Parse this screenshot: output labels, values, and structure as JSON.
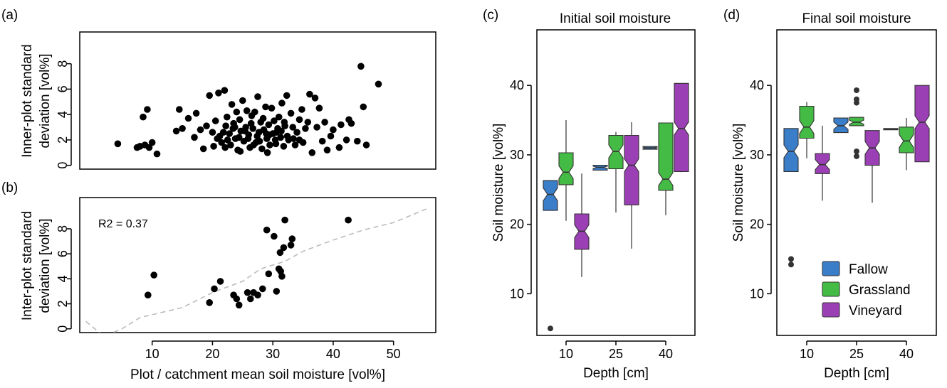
{
  "colors": {
    "Fallow": "#3a7dc9",
    "Grassland": "#44bb44",
    "Vineyard": "#9b3fb5",
    "point": "#000000",
    "fit_line": "#bbbbbb"
  },
  "panels": {
    "a": {
      "label": "(a)",
      "ylabel_line1": "Inner-plot standard",
      "ylabel_line2": "deviation [vol%]"
    },
    "b": {
      "label": "(b)",
      "ylabel_line1": "Inter-plot standard",
      "ylabel_line2": "deviation [vol%]",
      "annotation": "R2 = 0.37",
      "xlabel": "Plot / catchment mean soil moisture [vol%]"
    },
    "c": {
      "label": "(c)",
      "title": "Initial soil moisture",
      "ylabel": "Soil moisture [vol%]",
      "xlabel": "Depth [cm]"
    },
    "d": {
      "label": "(d)",
      "title": "Final soil moisture",
      "ylabel": "Soil moisture [vol%]",
      "xlabel": "Depth [cm]"
    }
  },
  "legend": {
    "items": [
      "Fallow",
      "Grassland",
      "Vineyard"
    ]
  },
  "chart_data": [
    {
      "id": "a",
      "type": "scatter",
      "xlim": [
        -2,
        57
      ],
      "ylim": [
        -0.3,
        10.5
      ],
      "xticks": [],
      "yticks": [
        0,
        2,
        4,
        6,
        8
      ],
      "points": [
        [
          4.3,
          1.7
        ],
        [
          7.5,
          1.4
        ],
        [
          8,
          1.5
        ],
        [
          8.5,
          3.8
        ],
        [
          8.8,
          1.6
        ],
        [
          9.2,
          4.4
        ],
        [
          9.5,
          1.4
        ],
        [
          10,
          1.8
        ],
        [
          10.8,
          0.9
        ],
        [
          14,
          2.7
        ],
        [
          14.5,
          4.4
        ],
        [
          15,
          2.9
        ],
        [
          16,
          3.7
        ],
        [
          17,
          2.2
        ],
        [
          17.3,
          4.1
        ],
        [
          18,
          2.8
        ],
        [
          18.5,
          1.3
        ],
        [
          19,
          3.1
        ],
        [
          19.5,
          5.5
        ],
        [
          20,
          2.6
        ],
        [
          20.2,
          1.5
        ],
        [
          20.5,
          3.5
        ],
        [
          21,
          5.7
        ],
        [
          21.2,
          2.3
        ],
        [
          21.5,
          1.8
        ],
        [
          22,
          5.9
        ],
        [
          22.2,
          3.1
        ],
        [
          22.5,
          2.0
        ],
        [
          22.8,
          2.5
        ],
        [
          23,
          1.6
        ],
        [
          23.2,
          4.8
        ],
        [
          23.5,
          3.3
        ],
        [
          23.8,
          2.1
        ],
        [
          24,
          4.2
        ],
        [
          24.2,
          1.2
        ],
        [
          24.5,
          3.6
        ],
        [
          24.7,
          2.7
        ],
        [
          25,
          5.1
        ],
        [
          25.2,
          1.9
        ],
        [
          25.5,
          3.0
        ],
        [
          25.7,
          4.3
        ],
        [
          26,
          2.4
        ],
        [
          26.2,
          1.4
        ],
        [
          26.5,
          3.9
        ],
        [
          26.7,
          2.9
        ],
        [
          27,
          4.2
        ],
        [
          27.2,
          1.8
        ],
        [
          27.5,
          5.4
        ],
        [
          27.7,
          2.6
        ],
        [
          28,
          3.4
        ],
        [
          28.2,
          1.3
        ],
        [
          28.5,
          2.8
        ],
        [
          28.8,
          4.6
        ],
        [
          29,
          2.1
        ],
        [
          29.3,
          3.2
        ],
        [
          29.5,
          1.6
        ],
        [
          29.8,
          4.5
        ],
        [
          30,
          2.5
        ],
        [
          30.2,
          3.5
        ],
        [
          30.5,
          1.7
        ],
        [
          30.8,
          2.9
        ],
        [
          31,
          3.8
        ],
        [
          31.3,
          2.2
        ],
        [
          31.5,
          4.9
        ],
        [
          31.8,
          1.5
        ],
        [
          32,
          3.1
        ],
        [
          32.3,
          5.5
        ],
        [
          32.6,
          2.0
        ],
        [
          33,
          4.1
        ],
        [
          33.3,
          3.0
        ],
        [
          33.7,
          1.6
        ],
        [
          34,
          2.6
        ],
        [
          34.4,
          3.6
        ],
        [
          34.8,
          4.4
        ],
        [
          35,
          1.8
        ],
        [
          35.4,
          2.9
        ],
        [
          35.8,
          3.4
        ],
        [
          36.1,
          5.6
        ],
        [
          36.5,
          1.0
        ],
        [
          37,
          5.3
        ],
        [
          37.3,
          3.0
        ],
        [
          37.7,
          4.5
        ],
        [
          38.2,
          1.9
        ],
        [
          38.6,
          3.4
        ],
        [
          39,
          1.2
        ],
        [
          39.6,
          2.3
        ],
        [
          40,
          2.8
        ],
        [
          41,
          1.4
        ],
        [
          41.3,
          3.2
        ],
        [
          42.2,
          2.0
        ],
        [
          42.6,
          3.6
        ],
        [
          43,
          3.3
        ],
        [
          44,
          1.9
        ],
        [
          44.6,
          7.8
        ],
        [
          45,
          4.6
        ],
        [
          45.5,
          1.6
        ],
        [
          47.5,
          6.4
        ],
        [
          20.8,
          2.1
        ],
        [
          21.8,
          2.6
        ],
        [
          22.4,
          3.8
        ],
        [
          23.4,
          2.9
        ],
        [
          24.4,
          2.2
        ],
        [
          25.4,
          2.7
        ],
        [
          26.4,
          3.3
        ],
        [
          27.4,
          2.3
        ],
        [
          28.4,
          3.7
        ],
        [
          29.4,
          2.4
        ],
        [
          30.4,
          2.0
        ],
        [
          31.4,
          2.7
        ],
        [
          32.4,
          2.3
        ],
        [
          33.4,
          2.1
        ],
        [
          34.4,
          2.0
        ],
        [
          24.6,
          1.1
        ],
        [
          27.8,
          1.9
        ],
        [
          29.1,
          1.0
        ],
        [
          30.6,
          2.6
        ],
        [
          26.8,
          1.6
        ],
        [
          23.7,
          3.0
        ],
        [
          22.1,
          1.4
        ],
        [
          31.9,
          3.4
        ],
        [
          28.9,
          2.5
        ],
        [
          25.9,
          2.1
        ]
      ]
    },
    {
      "id": "b",
      "type": "scatter",
      "xlim": [
        -2,
        57
      ],
      "ylim": [
        -0.3,
        10.5
      ],
      "xticks": [
        10,
        20,
        30,
        40,
        50
      ],
      "yticks": [
        0,
        2,
        4,
        6,
        8
      ],
      "points": [
        [
          9.3,
          2.7
        ],
        [
          10.3,
          4.3
        ],
        [
          19.5,
          2.1
        ],
        [
          20.3,
          3.2
        ],
        [
          21.3,
          3.8
        ],
        [
          23.5,
          2.7
        ],
        [
          24,
          2.4
        ],
        [
          24.4,
          1.9
        ],
        [
          25.8,
          2.9
        ],
        [
          26.3,
          2.4
        ],
        [
          26.8,
          2.9
        ],
        [
          27.5,
          2.7
        ],
        [
          28.3,
          3.2
        ],
        [
          29,
          7.9
        ],
        [
          29.3,
          4.4
        ],
        [
          30.2,
          7.4
        ],
        [
          30.6,
          3.0
        ],
        [
          31,
          4.8
        ],
        [
          31.2,
          6.1
        ],
        [
          31.3,
          4.6
        ],
        [
          31.5,
          4.2
        ],
        [
          31.8,
          6.5
        ],
        [
          32,
          8.7
        ],
        [
          33,
          6.7
        ],
        [
          33.2,
          7.2
        ],
        [
          42.5,
          8.7
        ]
      ],
      "fit_line": [
        [
          -1,
          0.6
        ],
        [
          2,
          -0.6
        ],
        [
          5,
          0
        ],
        [
          8,
          0.9
        ],
        [
          15,
          1.7
        ],
        [
          20,
          2.9
        ],
        [
          25,
          3.8
        ],
        [
          28,
          4.8
        ],
        [
          32,
          5.4
        ],
        [
          35,
          6.2
        ],
        [
          40,
          7.1
        ],
        [
          45,
          7.9
        ],
        [
          50,
          8.5
        ],
        [
          56,
          9.7
        ]
      ]
    },
    {
      "id": "c",
      "type": "boxplot",
      "ylim": [
        4,
        48
      ],
      "yticks": [
        10,
        20,
        30,
        40
      ],
      "categories": [
        "10",
        "25",
        "40"
      ],
      "series": [
        {
          "name": "Fallow",
          "boxes": [
            {
              "min": 22,
              "q1": 22,
              "med": 24.3,
              "q3": 26.3,
              "max": 26.3,
              "outliers": [
                5
              ]
            },
            {
              "min": 27.8,
              "q1": 27.8,
              "med": 28.2,
              "q3": 28.5,
              "max": 28.5,
              "outliers": []
            },
            {
              "min": 30.8,
              "q1": 30.8,
              "med": 31,
              "q3": 31.2,
              "max": 31.2,
              "outliers": []
            }
          ]
        },
        {
          "name": "Grassland",
          "boxes": [
            {
              "min": 20.5,
              "q1": 25.7,
              "med": 27.5,
              "q3": 30.3,
              "max": 35,
              "outliers": []
            },
            {
              "min": 21.7,
              "q1": 28,
              "med": 30.5,
              "q3": 32.8,
              "max": 33.3,
              "outliers": []
            },
            {
              "min": 21.3,
              "q1": 24.9,
              "med": 26.5,
              "q3": 34.6,
              "max": 34.6,
              "outliers": []
            }
          ]
        },
        {
          "name": "Vineyard",
          "boxes": [
            {
              "min": 12.4,
              "q1": 16.4,
              "med": 19,
              "q3": 21.5,
              "max": 27.3,
              "outliers": []
            },
            {
              "min": 16.5,
              "q1": 22.8,
              "med": 28.5,
              "q3": 32.8,
              "max": 34.7,
              "outliers": []
            },
            {
              "min": 27.5,
              "q1": 27.6,
              "med": 33.8,
              "q3": 40.3,
              "max": 40.3,
              "outliers": []
            }
          ]
        }
      ]
    },
    {
      "id": "d",
      "type": "boxplot",
      "ylim": [
        4,
        48
      ],
      "yticks": [
        10,
        20,
        30,
        40
      ],
      "categories": [
        "10",
        "25",
        "40"
      ],
      "series": [
        {
          "name": "Fallow",
          "boxes": [
            {
              "min": 27.6,
              "q1": 27.6,
              "med": 30.5,
              "q3": 33.8,
              "max": 33.8,
              "outliers": [
                15,
                14.2
              ]
            },
            {
              "min": 33.2,
              "q1": 33.2,
              "med": 34.2,
              "q3": 35.3,
              "max": 35.3,
              "outliers": []
            },
            {
              "min": 33.6,
              "q1": 33.6,
              "med": 33.7,
              "q3": 33.8,
              "max": 33.8,
              "outliers": []
            }
          ]
        },
        {
          "name": "Grassland",
          "boxes": [
            {
              "min": 29.5,
              "q1": 32.4,
              "med": 34,
              "q3": 37,
              "max": 37.6,
              "outliers": []
            },
            {
              "min": 34.2,
              "q1": 34.2,
              "med": 34.7,
              "q3": 35.4,
              "max": 35.4,
              "outliers": [
                39.3,
                38,
                37.5,
                30.5,
                29.8
              ]
            },
            {
              "min": 27.8,
              "q1": 30.3,
              "med": 32,
              "q3": 34,
              "max": 35.3,
              "outliers": []
            }
          ]
        },
        {
          "name": "Vineyard",
          "boxes": [
            {
              "min": 23.4,
              "q1": 27.3,
              "med": 28.6,
              "q3": 30.2,
              "max": 34.2,
              "outliers": []
            },
            {
              "min": 23.1,
              "q1": 28.5,
              "med": 31,
              "q3": 33.5,
              "max": 33.5,
              "outliers": []
            },
            {
              "min": 29,
              "q1": 29,
              "med": 34.7,
              "q3": 40,
              "max": 40,
              "outliers": []
            }
          ]
        }
      ]
    }
  ]
}
